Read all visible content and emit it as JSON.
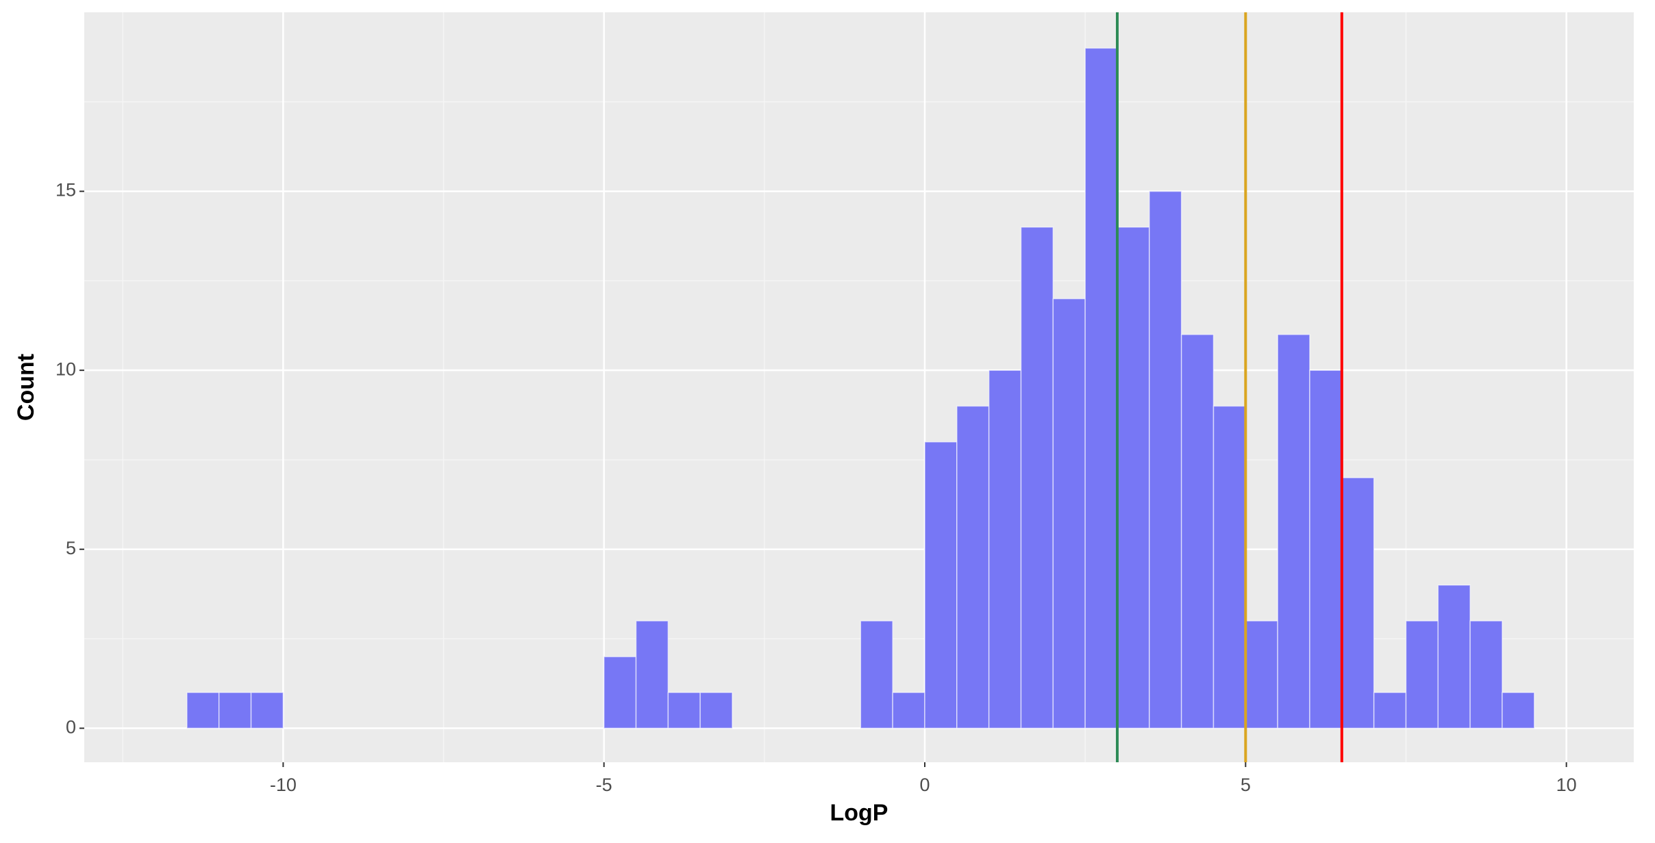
{
  "chart_data": {
    "type": "histogram",
    "x_label": "LogP",
    "y_label": "Count",
    "bins": [
      -11.5,
      -11,
      -10.5,
      -10,
      -9.5,
      -9,
      -8.5,
      -8,
      -7.5,
      -7,
      -6.5,
      -6,
      -5.5,
      -5,
      -4.5,
      -4,
      -3.5,
      -3,
      -2.5,
      -2,
      -1.5,
      -1,
      -0.5,
      0,
      0.5,
      1,
      1.5,
      2,
      2.5,
      3,
      3.5,
      4,
      4.5,
      5,
      5.5,
      6,
      6.5,
      7,
      7.5,
      8,
      8.5,
      9,
      9.5
    ],
    "values": [
      1,
      1,
      1,
      0,
      0,
      0,
      0,
      0,
      0,
      0,
      0,
      0,
      0,
      2,
      3,
      1,
      1,
      0,
      0,
      0,
      0,
      3,
      1,
      8,
      9,
      10,
      14,
      12,
      19,
      14,
      15,
      11,
      9,
      3,
      11,
      10,
      7,
      1,
      3,
      4,
      3,
      1
    ],
    "color": "#7777f5",
    "xlim": [
      -13.1,
      11.05
    ],
    "ylim": [
      -0.95,
      20
    ],
    "xticks": [
      -10,
      -5,
      0,
      5,
      10
    ],
    "yticks": [
      0,
      5,
      10,
      15
    ],
    "grid": true,
    "vlines": [
      {
        "x": 3,
        "color": "#2e8b57"
      },
      {
        "x": 5,
        "color": "#daa520"
      },
      {
        "x": 6.5,
        "color": "#ff0000"
      }
    ]
  }
}
